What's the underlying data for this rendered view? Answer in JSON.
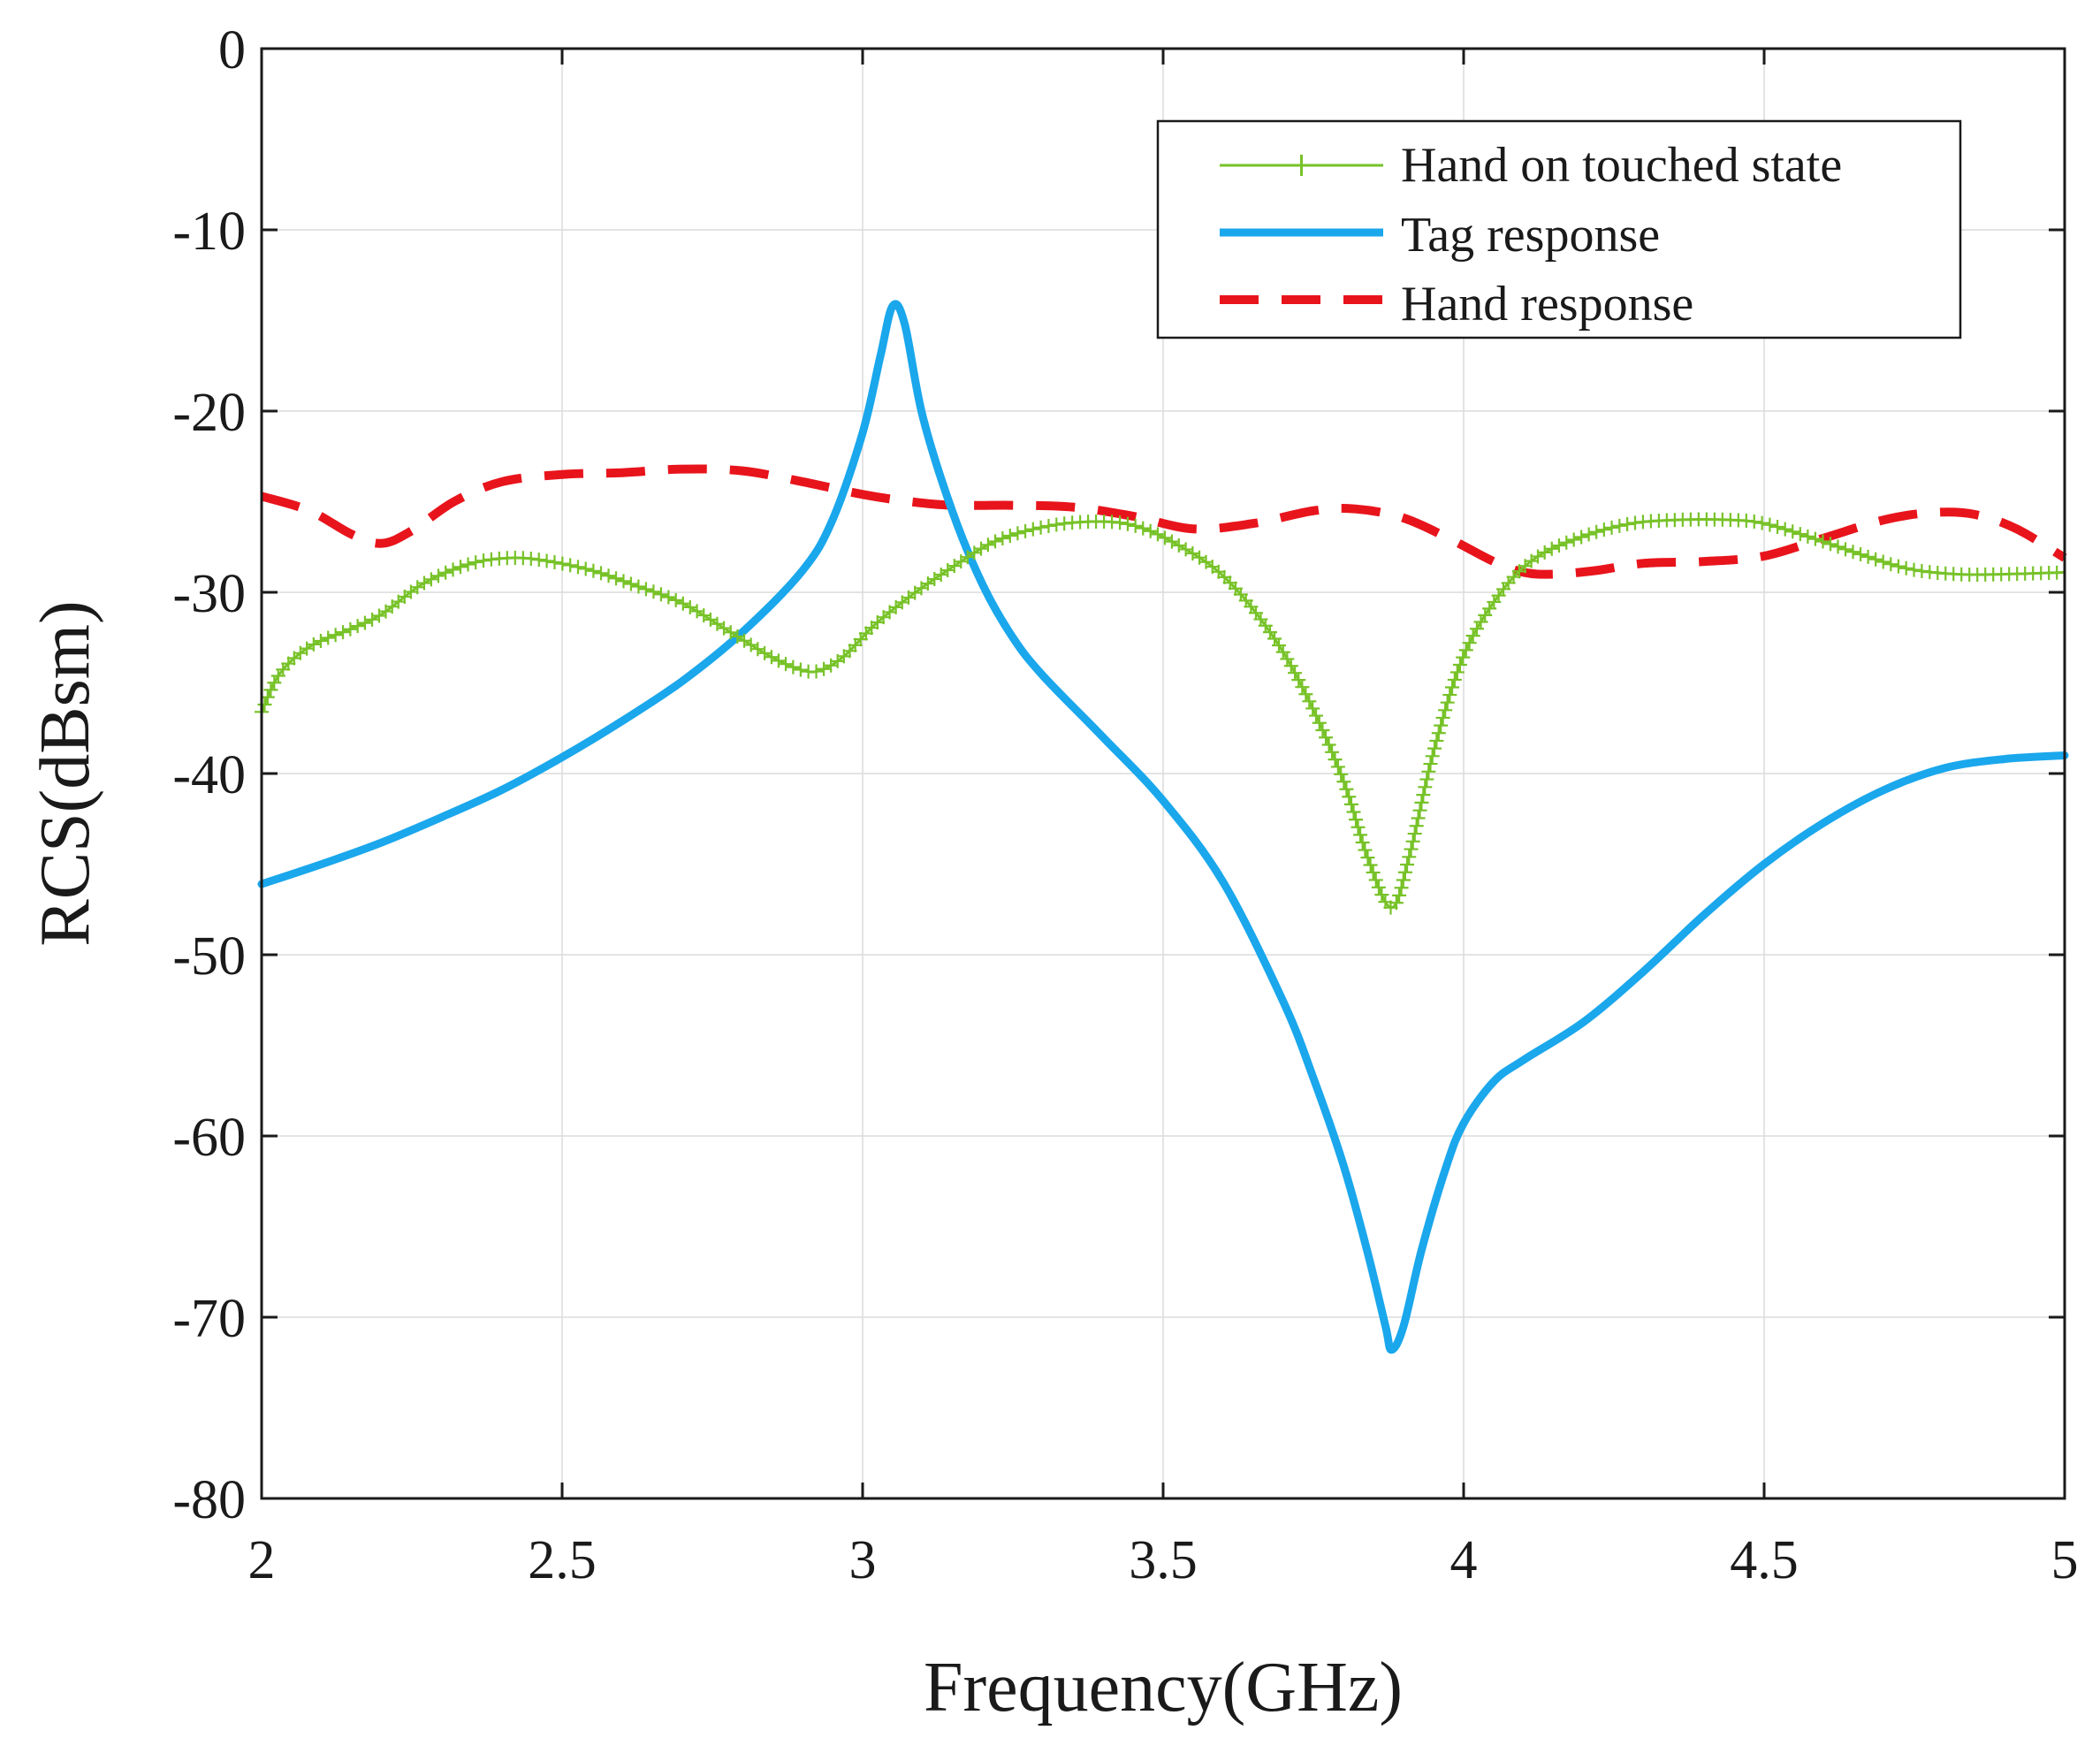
{
  "chart_data": {
    "type": "line",
    "title": "",
    "xlabel": "Frequency(GHz)",
    "ylabel": "RCS(dBsm)",
    "xlim": [
      2,
      5
    ],
    "ylim": [
      -80,
      0
    ],
    "xticks": [
      2,
      2.5,
      3,
      3.5,
      4,
      4.5,
      5
    ],
    "xtick_labels": [
      "2",
      "2.5",
      "3",
      "3.5",
      "4",
      "4.5",
      "5"
    ],
    "yticks": [
      0,
      -10,
      -20,
      -30,
      -40,
      -50,
      -60,
      -70,
      -80
    ],
    "ytick_labels": [
      "0",
      "-10",
      "-20",
      "-30",
      "-40",
      "-50",
      "-60",
      "-70",
      "-80"
    ],
    "grid": true,
    "legend_position": "top-right",
    "series": [
      {
        "name": "Hand on touched state",
        "color": "#77c228",
        "style": "solid-plus-markers",
        "x": [
          2.0,
          2.03,
          2.08,
          2.15,
          2.2,
          2.27,
          2.35,
          2.42,
          2.48,
          2.55,
          2.62,
          2.7,
          2.78,
          2.85,
          2.9,
          2.93,
          2.97,
          3.02,
          3.08,
          3.15,
          3.22,
          3.3,
          3.38,
          3.45,
          3.52,
          3.6,
          3.68,
          3.74,
          3.8,
          3.84,
          3.88,
          3.91,
          3.95,
          4.0,
          4.06,
          4.12,
          4.2,
          4.28,
          4.36,
          4.44,
          4.5,
          4.58,
          4.66,
          4.74,
          4.82,
          4.9,
          5.0
        ],
        "y": [
          -36.6,
          -34.5,
          -33.0,
          -32.0,
          -31.2,
          -29.5,
          -28.4,
          -28.1,
          -28.3,
          -28.8,
          -29.6,
          -30.6,
          -32.2,
          -33.6,
          -34.3,
          -34.3,
          -33.5,
          -31.8,
          -30.2,
          -28.6,
          -27.2,
          -26.4,
          -26.1,
          -26.3,
          -27.3,
          -29.1,
          -32.3,
          -35.8,
          -40.4,
          -44.6,
          -47.4,
          -44.5,
          -38.8,
          -33.5,
          -30.1,
          -28.1,
          -26.9,
          -26.2,
          -26.0,
          -26.0,
          -26.2,
          -27.0,
          -27.9,
          -28.7,
          -29.0,
          -29.0,
          -28.9
        ]
      },
      {
        "name": "Tag response",
        "color": "#1aa7ec",
        "style": "solid",
        "x": [
          2.0,
          2.1,
          2.2,
          2.3,
          2.4,
          2.5,
          2.6,
          2.7,
          2.8,
          2.9,
          2.95,
          3.0,
          3.03,
          3.05,
          3.07,
          3.1,
          3.15,
          3.2,
          3.25,
          3.3,
          3.4,
          3.5,
          3.6,
          3.7,
          3.75,
          3.8,
          3.84,
          3.87,
          3.88,
          3.9,
          3.93,
          3.97,
          4.0,
          4.05,
          4.1,
          4.2,
          4.3,
          4.4,
          4.5,
          4.6,
          4.7,
          4.8,
          4.9,
          5.0
        ],
        "y": [
          -46.1,
          -45.0,
          -43.8,
          -42.4,
          -40.9,
          -39.1,
          -37.1,
          -34.9,
          -32.2,
          -28.8,
          -26.0,
          -21.2,
          -16.9,
          -14.2,
          -15.2,
          -20.3,
          -25.6,
          -29.6,
          -32.5,
          -34.6,
          -38.0,
          -41.5,
          -46.0,
          -52.6,
          -56.8,
          -61.6,
          -66.4,
          -70.5,
          -71.8,
          -70.5,
          -66.3,
          -61.8,
          -59.3,
          -57.0,
          -55.8,
          -53.7,
          -50.9,
          -47.8,
          -45.0,
          -42.7,
          -40.9,
          -39.7,
          -39.2,
          -39.0
        ]
      },
      {
        "name": "Hand response",
        "color": "#e8141c",
        "style": "dashed",
        "x": [
          2.0,
          2.08,
          2.15,
          2.2,
          2.25,
          2.32,
          2.4,
          2.5,
          2.6,
          2.7,
          2.8,
          2.9,
          3.0,
          3.08,
          3.15,
          3.25,
          3.35,
          3.45,
          3.55,
          3.65,
          3.75,
          3.82,
          3.9,
          3.98,
          4.05,
          4.1,
          4.15,
          4.22,
          4.3,
          4.4,
          4.5,
          4.6,
          4.7,
          4.78,
          4.85,
          4.92,
          5.0
        ],
        "y": [
          -24.7,
          -25.5,
          -26.8,
          -27.3,
          -26.6,
          -25.0,
          -23.9,
          -23.5,
          -23.4,
          -23.2,
          -23.3,
          -23.9,
          -24.6,
          -25.0,
          -25.2,
          -25.2,
          -25.3,
          -25.8,
          -26.5,
          -26.2,
          -25.5,
          -25.4,
          -25.9,
          -27.1,
          -28.3,
          -28.9,
          -29.0,
          -28.8,
          -28.4,
          -28.3,
          -28.0,
          -27.0,
          -26.0,
          -25.6,
          -25.7,
          -26.5,
          -28.1
        ]
      }
    ]
  }
}
